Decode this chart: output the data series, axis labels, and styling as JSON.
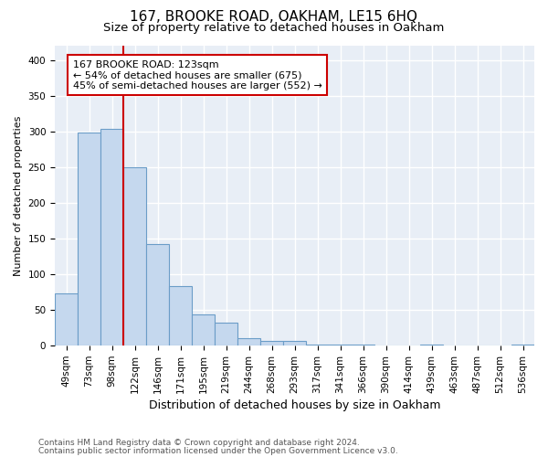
{
  "title1": "167, BROOKE ROAD, OAKHAM, LE15 6HQ",
  "title2": "Size of property relative to detached houses in Oakham",
  "xlabel": "Distribution of detached houses by size in Oakham",
  "ylabel": "Number of detached properties",
  "footnote1": "Contains HM Land Registry data © Crown copyright and database right 2024.",
  "footnote2": "Contains public sector information licensed under the Open Government Licence v3.0.",
  "bar_labels": [
    "49sqm",
    "73sqm",
    "98sqm",
    "122sqm",
    "146sqm",
    "171sqm",
    "195sqm",
    "219sqm",
    "244sqm",
    "268sqm",
    "293sqm",
    "317sqm",
    "341sqm",
    "366sqm",
    "390sqm",
    "414sqm",
    "439sqm",
    "463sqm",
    "487sqm",
    "512sqm",
    "536sqm"
  ],
  "bar_values": [
    73,
    298,
    303,
    250,
    142,
    83,
    44,
    32,
    10,
    7,
    7,
    1,
    1,
    1,
    0,
    0,
    1,
    0,
    0,
    0,
    1
  ],
  "bar_color": "#c5d8ee",
  "bar_edge_color": "#6b9dc8",
  "background_color": "#e8eef6",
  "grid_color": "#ffffff",
  "property_line_color": "#cc0000",
  "property_line_bin_index": 3,
  "annotation_line1": "167 BROOKE ROAD: 123sqm",
  "annotation_line2": "← 54% of detached houses are smaller (675)",
  "annotation_line3": "45% of semi-detached houses are larger (552) →",
  "annotation_box_edgecolor": "#cc0000",
  "ylim": [
    0,
    420
  ],
  "yticks": [
    0,
    50,
    100,
    150,
    200,
    250,
    300,
    350,
    400
  ],
  "title1_fontsize": 11,
  "title2_fontsize": 9.5,
  "xlabel_fontsize": 9,
  "ylabel_fontsize": 8,
  "tick_fontsize": 7.5,
  "annot_fontsize": 8,
  "footnote_fontsize": 6.5
}
